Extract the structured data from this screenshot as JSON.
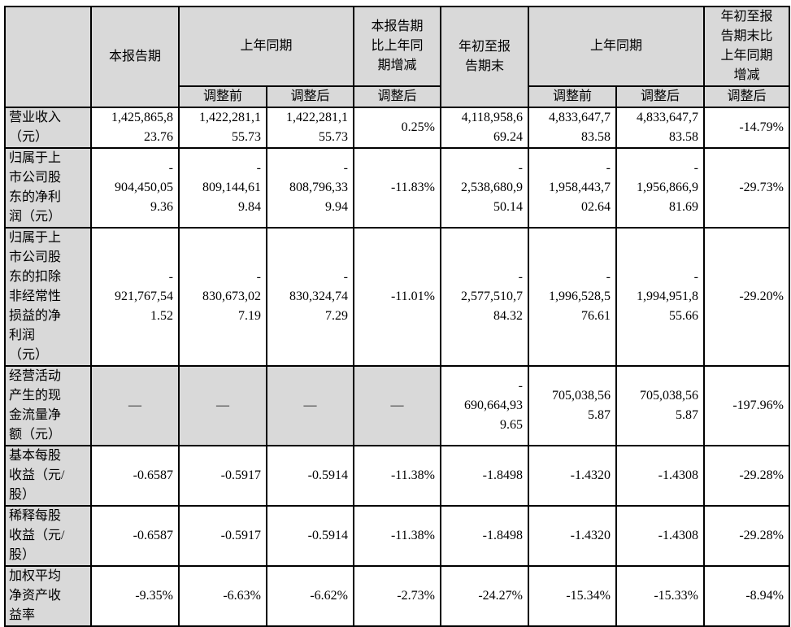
{
  "header": {
    "current_period": "本报告期",
    "prior_year_period_1": "上年同期",
    "change_current": "本报告期\n比上年同\n期增减",
    "ytd": "年初至报\n告期末",
    "prior_year_period_2": "上年同期",
    "change_ytd": "年初至报\n告期末比\n上年同期\n增减",
    "before_adjust_1": "调整前",
    "after_adjust_1": "调整后",
    "after_adjust_change_1": "调整后",
    "before_adjust_2": "调整前",
    "after_adjust_2": "调整后",
    "after_adjust_change_2": "调整后"
  },
  "rows": [
    {
      "label": "营业收入\n（元）",
      "cells": [
        "1,425,865,8\n23.76",
        "1,422,281,1\n55.73",
        "1,422,281,1\n55.73",
        "0.25%",
        "4,118,958,6\n69.24",
        "4,833,647,7\n83.58",
        "4,833,647,7\n83.58",
        "-14.79%"
      ],
      "height": 50
    },
    {
      "label": "归属于上\n市公司股\n东的净利\n润（元）",
      "cells": [
        "-\n904,450,05\n9.36",
        "-\n809,144,61\n9.84",
        "-\n808,796,33\n9.94",
        "-11.83%",
        "-\n2,538,680,9\n50.14",
        "-\n1,958,443,7\n02.64",
        "-\n1,956,866,9\n81.69",
        "-29.73%"
      ],
      "height": 97
    },
    {
      "label": "归属于上\n市公司股\n东的扣除\n非经常性\n损益的净\n利润\n（元）",
      "cells": [
        "-\n921,767,54\n1.52",
        "-\n830,673,02\n7.19",
        "-\n830,324,74\n7.29",
        "-11.01%",
        "-\n2,577,510,7\n84.32",
        "-\n1,996,528,5\n76.61",
        "-\n1,994,951,8\n55.66",
        "-29.20%"
      ],
      "height": 168
    },
    {
      "label": "经营活动\n产生的现\n金流量净\n额（元）",
      "cells": [
        "—",
        "—",
        "—",
        "—",
        "-\n690,664,93\n9.65",
        "705,038,56\n5.87",
        "705,038,56\n5.87",
        "-197.96%"
      ],
      "grey_cells": 4,
      "height": 97
    },
    {
      "label": "基本每股\n收益（元/\n股）",
      "cells": [
        "-0.6587",
        "-0.5917",
        "-0.5914",
        "-11.38%",
        "-1.8498",
        "-1.4320",
        "-1.4308",
        "-29.28%"
      ],
      "height": 72
    },
    {
      "label": "稀释每股\n收益（元/\n股）",
      "cells": [
        "-0.6587",
        "-0.5917",
        "-0.5914",
        "-11.38%",
        "-1.8498",
        "-1.4320",
        "-1.4308",
        "-29.28%"
      ],
      "height": 73
    },
    {
      "label": "加权平均\n净资产收\n益率",
      "cells": [
        "-9.35%",
        "-6.63%",
        "-6.62%",
        "-2.73%",
        "-24.27%",
        "-15.34%",
        "-15.33%",
        "-8.94%"
      ],
      "height": 73
    }
  ]
}
